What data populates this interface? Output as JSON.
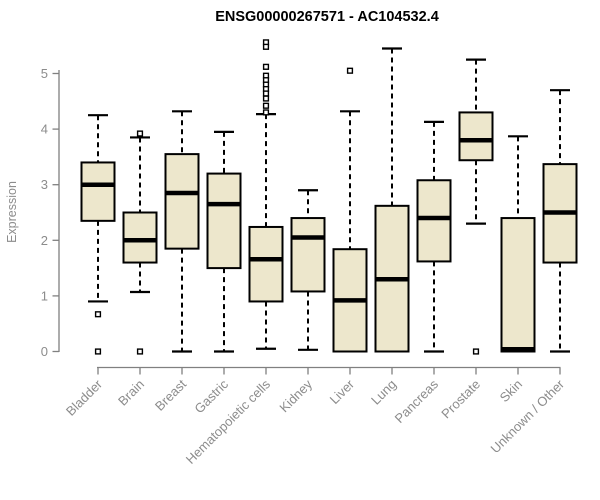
{
  "title": "ENSG00000267571 - AC104532.4",
  "colors": {
    "background": "#ffffff",
    "box_fill": "#ede7cc",
    "box_border": "#000000",
    "median": "#000000",
    "whisker": "#000000",
    "axis_line": "#808080",
    "axis_text": "#8c8c8c",
    "title_text": "#000000"
  },
  "chart_data": {
    "type": "boxplot",
    "title": "ENSG00000267571 - AC104532.4",
    "xlabel": "",
    "ylabel": "Expression",
    "ylim": [
      0,
      5.5
    ],
    "yticks": [
      0,
      1,
      2,
      3,
      4,
      5
    ],
    "grid": false,
    "legend": "none",
    "categories": [
      "Bladder",
      "Brain",
      "Breast",
      "Gastric",
      "Hematopoietic cells",
      "Kidney",
      "Liver",
      "Lung",
      "Pancreas",
      "Prostate",
      "Skin",
      "Unknown / Other"
    ],
    "series": [
      {
        "name": "Bladder",
        "whisker_low": 0.9,
        "q1": 2.35,
        "median": 3.0,
        "q3": 3.4,
        "whisker_high": 4.25,
        "outliers": [
          0.67,
          0
        ]
      },
      {
        "name": "Brain",
        "whisker_low": 1.07,
        "q1": 1.6,
        "median": 2.0,
        "q3": 2.5,
        "whisker_high": 3.85,
        "outliers": [
          3.92,
          0
        ]
      },
      {
        "name": "Breast",
        "whisker_low": 0,
        "q1": 1.85,
        "median": 2.85,
        "q3": 3.55,
        "whisker_high": 4.32,
        "outliers": []
      },
      {
        "name": "Gastric",
        "whisker_low": 0,
        "q1": 1.5,
        "median": 2.65,
        "q3": 3.2,
        "whisker_high": 3.95,
        "outliers": []
      },
      {
        "name": "Hematopoietic cells",
        "whisker_low": 0.05,
        "q1": 0.9,
        "median": 1.66,
        "q3": 2.24,
        "whisker_high": 4.27,
        "outliers": [
          5.56,
          5.48,
          5.12,
          4.96,
          4.88,
          4.8,
          4.72,
          4.64,
          4.55,
          4.42,
          4.3
        ]
      },
      {
        "name": "Kidney",
        "whisker_low": 0.03,
        "q1": 1.08,
        "median": 2.05,
        "q3": 2.4,
        "whisker_high": 2.9,
        "outliers": []
      },
      {
        "name": "Liver",
        "whisker_low": 0,
        "q1": 0,
        "median": 0.92,
        "q3": 1.84,
        "whisker_high": 4.32,
        "outliers": [
          5.05
        ]
      },
      {
        "name": "Lung",
        "whisker_low": 0,
        "q1": 0,
        "median": 1.3,
        "q3": 2.62,
        "whisker_high": 5.45,
        "outliers": []
      },
      {
        "name": "Pancreas",
        "whisker_low": 0,
        "q1": 1.62,
        "median": 2.4,
        "q3": 3.08,
        "whisker_high": 4.13,
        "outliers": []
      },
      {
        "name": "Prostate",
        "whisker_low": 2.3,
        "q1": 3.44,
        "median": 3.8,
        "q3": 4.3,
        "whisker_high": 5.25,
        "outliers": [
          0
        ]
      },
      {
        "name": "Skin",
        "whisker_low": 0,
        "q1": 0,
        "median": 0.04,
        "q3": 2.4,
        "whisker_high": 3.87,
        "outliers": []
      },
      {
        "name": "Unknown / Other",
        "whisker_low": 0,
        "q1": 1.6,
        "median": 2.5,
        "q3": 3.37,
        "whisker_high": 4.7,
        "outliers": []
      }
    ]
  }
}
